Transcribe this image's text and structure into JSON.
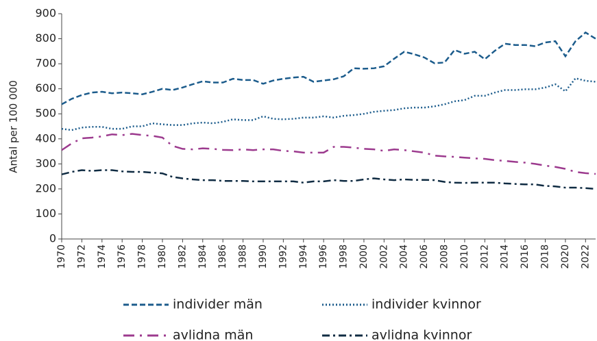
{
  "chart_data": {
    "type": "line",
    "y_label": "Antal per 100 000",
    "x": [
      1970,
      1971,
      1972,
      1973,
      1974,
      1975,
      1976,
      1977,
      1978,
      1979,
      1980,
      1981,
      1982,
      1983,
      1984,
      1985,
      1986,
      1987,
      1988,
      1989,
      1990,
      1991,
      1992,
      1993,
      1994,
      1995,
      1996,
      1997,
      1998,
      1999,
      2000,
      2001,
      2002,
      2003,
      2004,
      2005,
      2006,
      2007,
      2008,
      2009,
      2010,
      2011,
      2012,
      2013,
      2014,
      2015,
      2016,
      2017,
      2018,
      2019,
      2020,
      2021,
      2022,
      2023
    ],
    "xlim": [
      1970,
      2023
    ],
    "xticks": [
      1970,
      1972,
      1974,
      1976,
      1978,
      1980,
      1982,
      1984,
      1986,
      1988,
      1990,
      1992,
      1994,
      1996,
      1998,
      2000,
      2002,
      2004,
      2006,
      2008,
      2010,
      2012,
      2014,
      2016,
      2018,
      2020,
      2022
    ],
    "ylim": [
      0,
      900
    ],
    "yticks": [
      0,
      100,
      200,
      300,
      400,
      500,
      600,
      700,
      800,
      900
    ],
    "series": [
      {
        "name": "individer män",
        "color": "#1c5c8c",
        "dash": "dashed",
        "values": [
          538,
          560,
          575,
          585,
          588,
          582,
          585,
          582,
          578,
          588,
          600,
          595,
          605,
          618,
          630,
          625,
          625,
          640,
          635,
          635,
          620,
          633,
          640,
          645,
          648,
          628,
          633,
          638,
          650,
          682,
          680,
          682,
          690,
          720,
          748,
          738,
          725,
          702,
          705,
          755,
          740,
          748,
          718,
          752,
          780,
          775,
          775,
          770,
          785,
          790,
          730,
          790,
          825,
          800
        ]
      },
      {
        "name": "individer kvinnor",
        "color": "#1c5c8c",
        "dash": "dotted",
        "values": [
          440,
          435,
          445,
          448,
          448,
          440,
          440,
          450,
          450,
          462,
          458,
          455,
          455,
          462,
          465,
          462,
          468,
          478,
          475,
          475,
          490,
          480,
          478,
          480,
          485,
          485,
          490,
          485,
          492,
          495,
          500,
          508,
          512,
          515,
          522,
          525,
          525,
          530,
          538,
          550,
          555,
          572,
          572,
          585,
          595,
          595,
          598,
          598,
          605,
          618,
          590,
          642,
          632,
          628
        ]
      },
      {
        "name": "avlidna män",
        "color": "#9c3a8e",
        "dash": "dashdot",
        "values": [
          355,
          382,
          402,
          405,
          410,
          418,
          415,
          420,
          415,
          412,
          405,
          372,
          360,
          358,
          362,
          360,
          356,
          355,
          358,
          355,
          358,
          358,
          352,
          350,
          345,
          345,
          345,
          368,
          368,
          365,
          360,
          358,
          352,
          358,
          355,
          350,
          345,
          333,
          330,
          328,
          325,
          322,
          320,
          315,
          312,
          308,
          305,
          300,
          293,
          288,
          280,
          268,
          263,
          260
        ]
      },
      {
        "name": "avlidna kvinnor",
        "color": "#0f2b42",
        "dash": "longdashdot",
        "values": [
          258,
          268,
          275,
          272,
          275,
          275,
          270,
          268,
          268,
          265,
          262,
          248,
          242,
          238,
          235,
          235,
          232,
          232,
          232,
          230,
          230,
          230,
          230,
          230,
          225,
          230,
          230,
          235,
          232,
          232,
          238,
          242,
          238,
          235,
          238,
          236,
          236,
          235,
          228,
          225,
          224,
          225,
          225,
          225,
          222,
          220,
          218,
          218,
          212,
          210,
          205,
          205,
          203,
          200
        ]
      }
    ]
  }
}
